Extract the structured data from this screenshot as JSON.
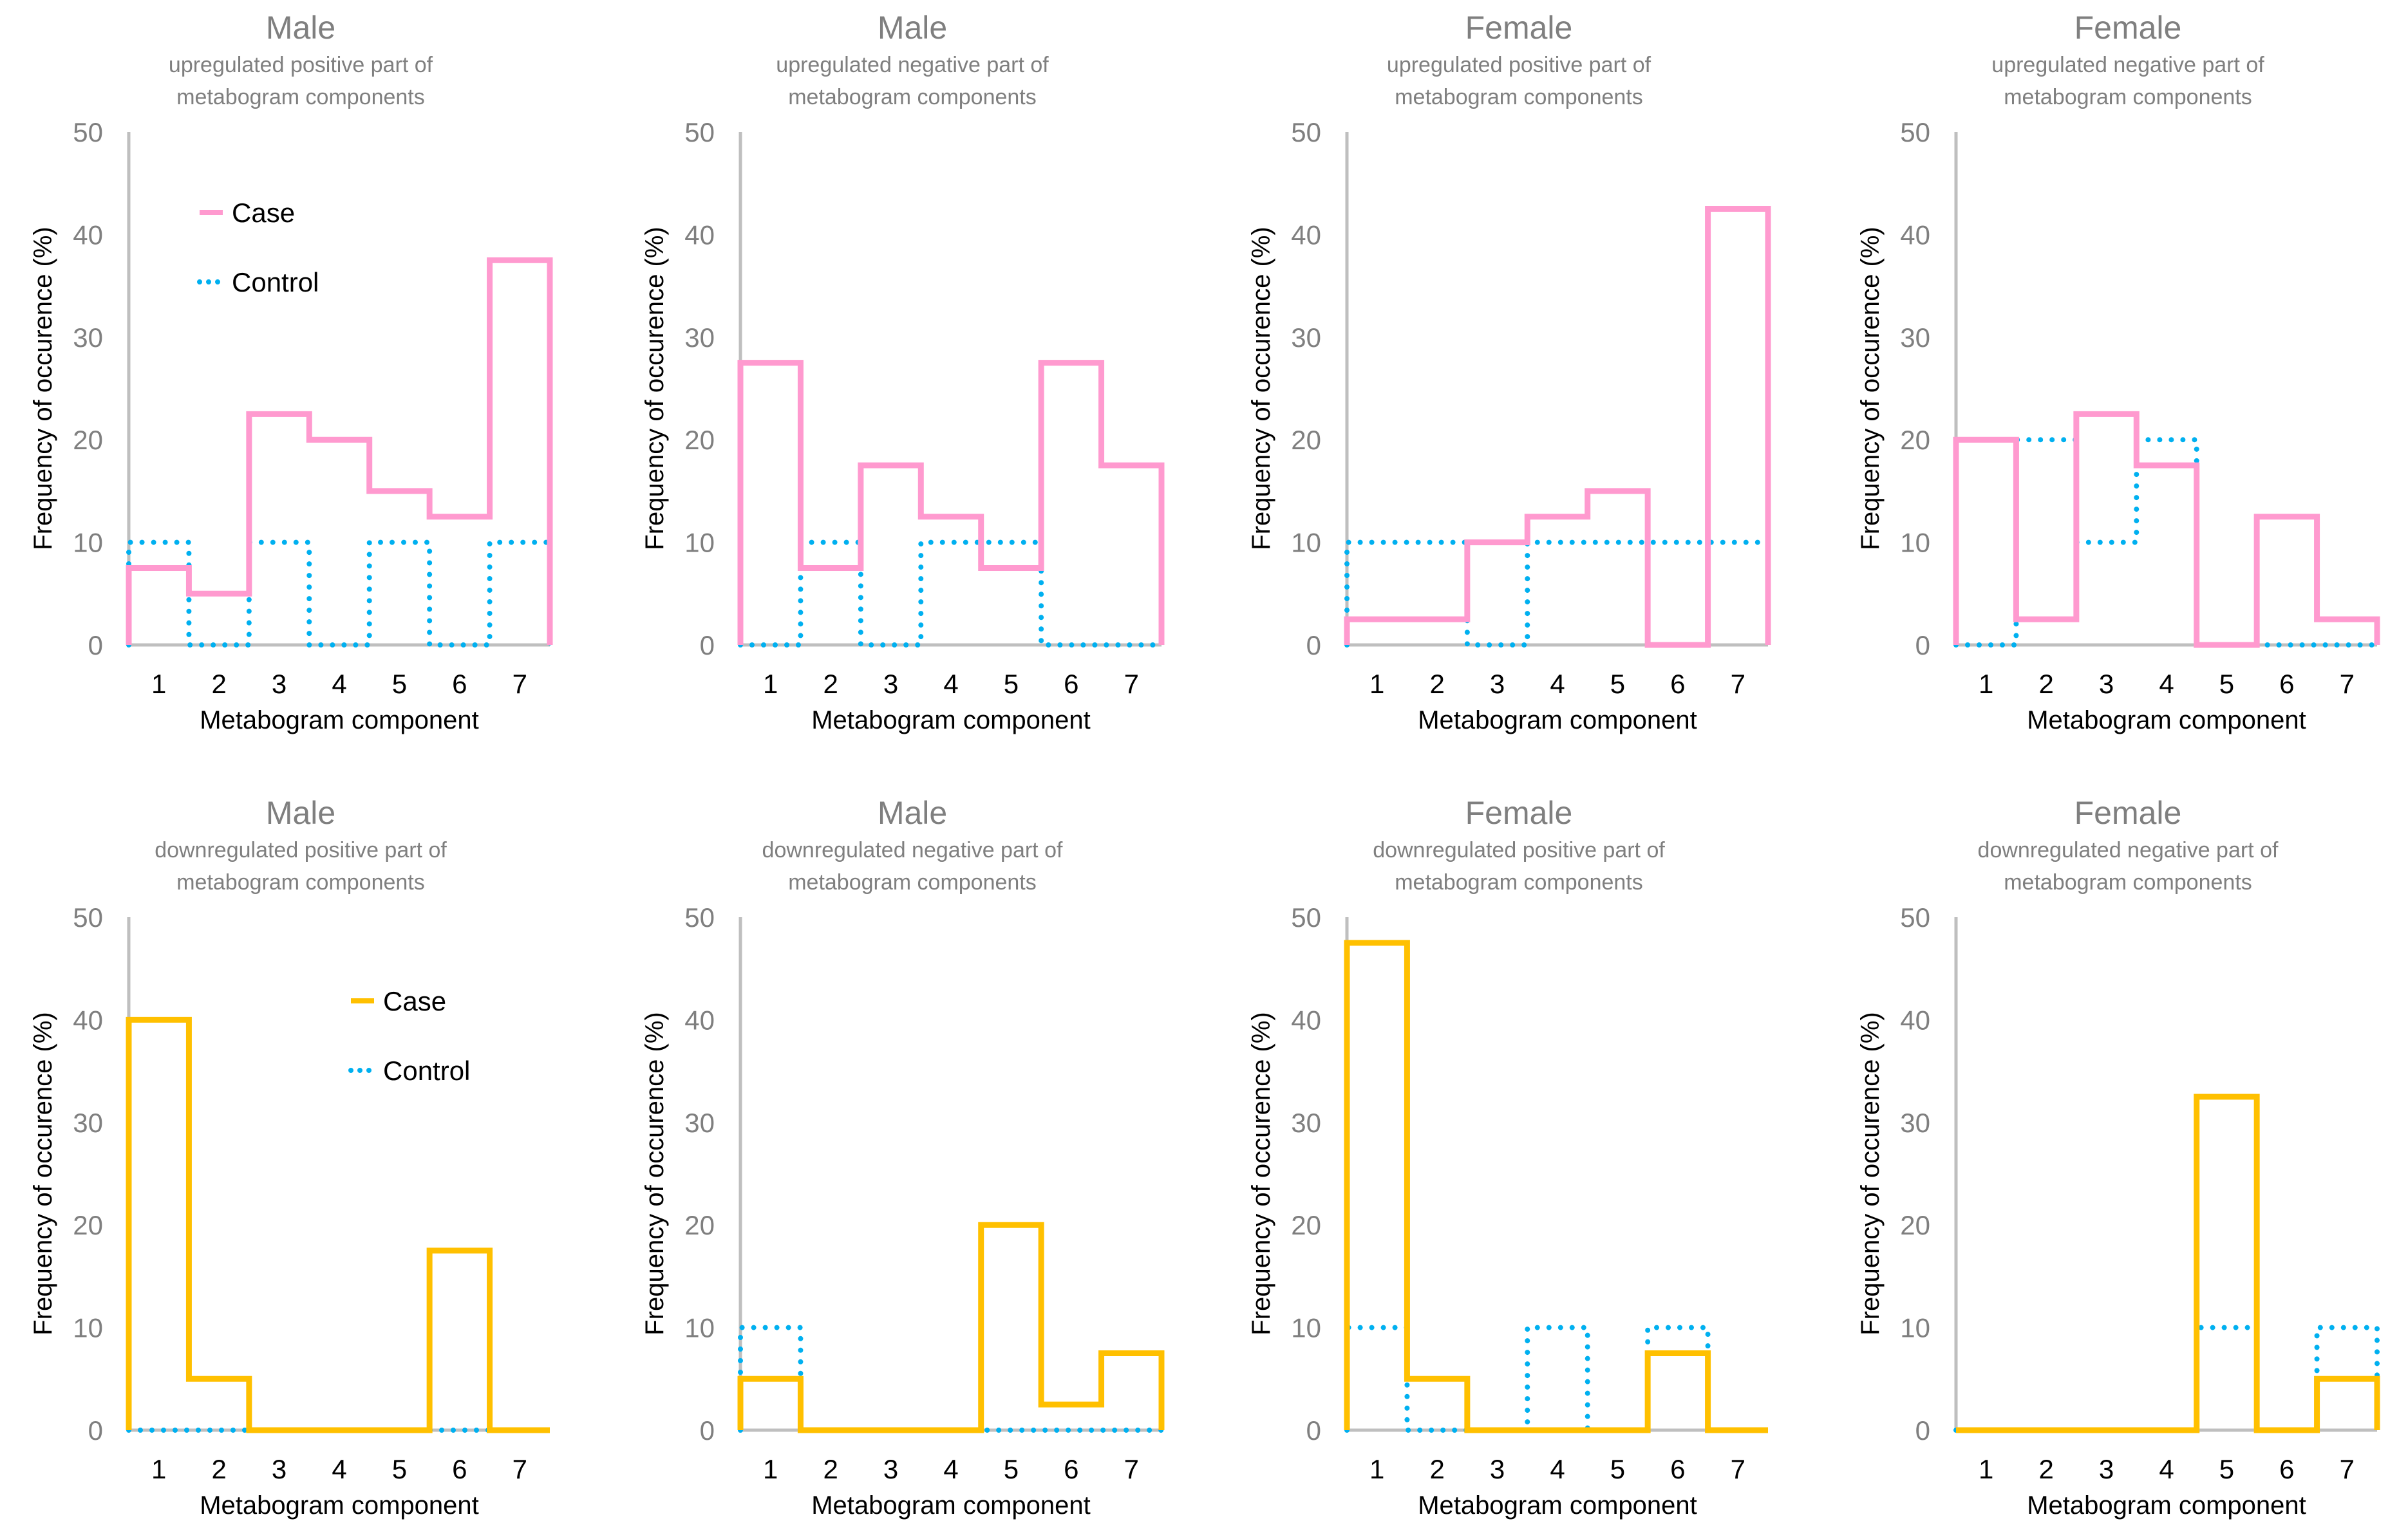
{
  "colors": {
    "case_up": "#FF9ACF",
    "case_down": "#FFC000",
    "control": "#00B0F0",
    "axis": "#BFBFBF"
  },
  "chart_data": [
    {
      "type": "step",
      "title": "Male",
      "subtitle": [
        "upregulated positive part of",
        "metabogram components"
      ],
      "xlabel": "Metabogram component",
      "ylabel": "Frequency of occurence (%)",
      "categories": [
        "1",
        "2",
        "3",
        "4",
        "5",
        "6",
        "7"
      ],
      "ylim": [
        0,
        50
      ],
      "yticks": [
        "0",
        "10",
        "20",
        "30",
        "40",
        "50"
      ],
      "grid": false,
      "legend": "top-left",
      "series": [
        {
          "name": "Case",
          "style": "solid",
          "values": [
            7.5,
            5,
            22.5,
            20,
            15,
            12.5,
            37.5
          ]
        },
        {
          "name": "Control",
          "style": "dotted",
          "values": [
            10,
            0,
            10,
            0,
            10,
            0,
            10
          ]
        }
      ]
    },
    {
      "type": "step",
      "title": "Male",
      "subtitle": [
        "upregulated negative part of",
        "metabogram components"
      ],
      "xlabel": "Metabogram component",
      "ylabel": "Frequency of occurence (%)",
      "categories": [
        "1",
        "2",
        "3",
        "4",
        "5",
        "6",
        "7"
      ],
      "ylim": [
        0,
        50
      ],
      "yticks": [
        "0",
        "10",
        "20",
        "30",
        "40",
        "50"
      ],
      "grid": false,
      "legend": "none",
      "series": [
        {
          "style": "solid",
          "values": [
            27.5,
            7.5,
            17.5,
            12.5,
            7.5,
            27.5,
            17.5
          ]
        },
        {
          "style": "dotted",
          "values": [
            0,
            10,
            0,
            10,
            10,
            0,
            0
          ]
        }
      ]
    },
    {
      "type": "step",
      "title": "Female",
      "subtitle": [
        "upregulated positive part of",
        "metabogram components"
      ],
      "xlabel": "Metabogram component",
      "ylabel": "Frequency of occurence (%)",
      "categories": [
        "1",
        "2",
        "3",
        "4",
        "5",
        "6",
        "7"
      ],
      "ylim": [
        0,
        50
      ],
      "yticks": [
        "0",
        "10",
        "20",
        "30",
        "40",
        "50"
      ],
      "grid": false,
      "legend": "none",
      "series": [
        {
          "style": "solid",
          "values": [
            2.5,
            2.5,
            10,
            12.5,
            15,
            0,
            42.5
          ]
        },
        {
          "style": "dotted",
          "values": [
            10,
            10,
            0,
            10,
            10,
            10,
            10
          ]
        }
      ]
    },
    {
      "type": "step",
      "title": "Female",
      "subtitle": [
        "upregulated negative part of",
        "metabogram components"
      ],
      "xlabel": "Metabogram component",
      "ylabel": "Frequency of occurence (%)",
      "categories": [
        "1",
        "2",
        "3",
        "4",
        "5",
        "6",
        "7"
      ],
      "ylim": [
        0,
        50
      ],
      "yticks": [
        "0",
        "10",
        "20",
        "30",
        "40",
        "50"
      ],
      "grid": false,
      "legend": "none",
      "series": [
        {
          "style": "solid",
          "values": [
            20,
            2.5,
            22.5,
            17.5,
            0,
            12.5,
            2.5
          ]
        },
        {
          "style": "dotted",
          "values": [
            0,
            20,
            10,
            20,
            0,
            0,
            0
          ]
        }
      ]
    },
    {
      "type": "step",
      "title": "Male",
      "subtitle": [
        "downregulated positive part of",
        "metabogram components"
      ],
      "xlabel": "Metabogram component",
      "ylabel": "Frequency of occurence (%)",
      "categories": [
        "1",
        "2",
        "3",
        "4",
        "5",
        "6",
        "7"
      ],
      "ylim": [
        0,
        50
      ],
      "yticks": [
        "0",
        "10",
        "20",
        "30",
        "40",
        "50"
      ],
      "grid": false,
      "legend": "top-right",
      "series": [
        {
          "name": "Case",
          "style": "solid",
          "values": [
            40,
            5,
            0,
            0,
            0,
            17.5,
            0
          ]
        },
        {
          "name": "Control",
          "style": "dotted",
          "values": [
            0,
            0,
            0,
            0,
            0,
            0,
            0
          ]
        }
      ]
    },
    {
      "type": "step",
      "title": "Male",
      "subtitle": [
        "downregulated negative part of",
        "metabogram components"
      ],
      "xlabel": "Metabogram component",
      "ylabel": "Frequency of occurence (%)",
      "categories": [
        "1",
        "2",
        "3",
        "4",
        "5",
        "6",
        "7"
      ],
      "ylim": [
        0,
        50
      ],
      "yticks": [
        "0",
        "10",
        "20",
        "30",
        "40",
        "50"
      ],
      "grid": false,
      "legend": "none",
      "series": [
        {
          "style": "solid",
          "values": [
            5,
            0,
            0,
            0,
            20,
            2.5,
            7.5
          ]
        },
        {
          "style": "dotted",
          "values": [
            10,
            0,
            0,
            0,
            0,
            0,
            0
          ]
        }
      ]
    },
    {
      "type": "step",
      "title": "Female",
      "subtitle": [
        "downregulated positive part of",
        "metabogram components"
      ],
      "xlabel": "Metabogram component",
      "ylabel": "Frequency of occurence (%)",
      "categories": [
        "1",
        "2",
        "3",
        "4",
        "5",
        "6",
        "7"
      ],
      "ylim": [
        0,
        50
      ],
      "yticks": [
        "0",
        "10",
        "20",
        "30",
        "40",
        "50"
      ],
      "grid": false,
      "legend": "none",
      "series": [
        {
          "style": "solid",
          "values": [
            47.5,
            5,
            0,
            0,
            0,
            7.5,
            0
          ]
        },
        {
          "style": "dotted",
          "values": [
            10,
            0,
            0,
            10,
            0,
            10,
            0
          ]
        }
      ]
    },
    {
      "type": "step",
      "title": "Female",
      "subtitle": [
        "downregulated negative part of",
        "metabogram components"
      ],
      "xlabel": "Metabogram component",
      "ylabel": "Frequency of occurence (%)",
      "categories": [
        "1",
        "2",
        "3",
        "4",
        "5",
        "6",
        "7"
      ],
      "ylim": [
        0,
        50
      ],
      "yticks": [
        "0",
        "10",
        "20",
        "30",
        "40",
        "50"
      ],
      "grid": false,
      "legend": "none",
      "series": [
        {
          "style": "solid",
          "values": [
            0,
            0,
            0,
            0,
            32.5,
            0,
            5
          ]
        },
        {
          "style": "dotted",
          "values": [
            0,
            0,
            0,
            0,
            10,
            0,
            10
          ]
        }
      ]
    }
  ]
}
